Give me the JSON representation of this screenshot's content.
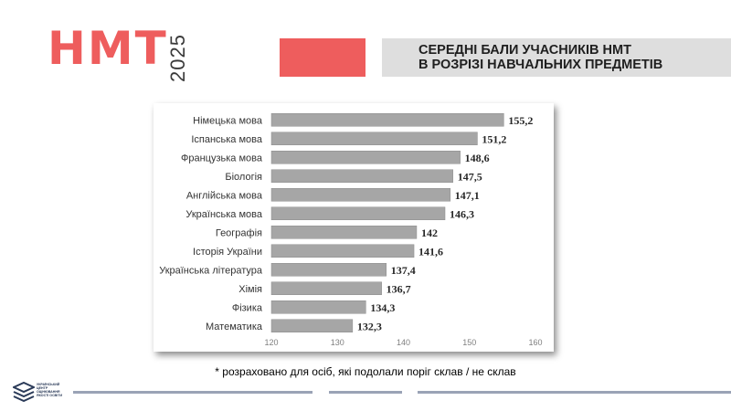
{
  "brand": {
    "title": "НМТ",
    "year": "2025",
    "accent_color": "#ee5d5d",
    "year_color": "#3a3a3a"
  },
  "header": {
    "title_line1": "СЕРЕДНІ БАЛИ УЧАСНИКІВ НМТ",
    "title_line2": "В РОЗРІЗІ НАВЧАЛЬНИХ ПРЕДМЕТІВ"
  },
  "chart_data": {
    "type": "bar",
    "orientation": "horizontal",
    "categories": [
      "Німецька мова",
      "Іспанська мова",
      "Французька мова",
      "Біологія",
      "Англійська мова",
      "Українська мова",
      "Географія",
      "Історія України",
      "Українська література",
      "Хімія",
      "Фізика",
      "Математика"
    ],
    "values": [
      155.2,
      151.2,
      148.6,
      147.5,
      147.1,
      146.3,
      142,
      141.6,
      137.4,
      136.7,
      134.3,
      132.3
    ],
    "value_labels": [
      "155,2",
      "151,2",
      "148,6",
      "147,5",
      "147,1",
      "146,3",
      "142",
      "141,6",
      "137,4",
      "136,7",
      "134,3",
      "132,3"
    ],
    "xlim": [
      120,
      160
    ],
    "xticks": [
      120,
      130,
      140,
      150,
      160
    ],
    "bar_color": "#a6a6a6",
    "grid": false,
    "legend": "none"
  },
  "footnote": "* розраховано для осіб, які подолали поріг склав / не склав",
  "footer": {
    "org_name": "УКРАЇНСЬКИЙ\nЦЕНТР\nОЦІНЮВАННЯ\nЯКОСТІ ОСВІТИ",
    "line_color": "#9aa3b6",
    "logo_color": "#2a3a58"
  }
}
